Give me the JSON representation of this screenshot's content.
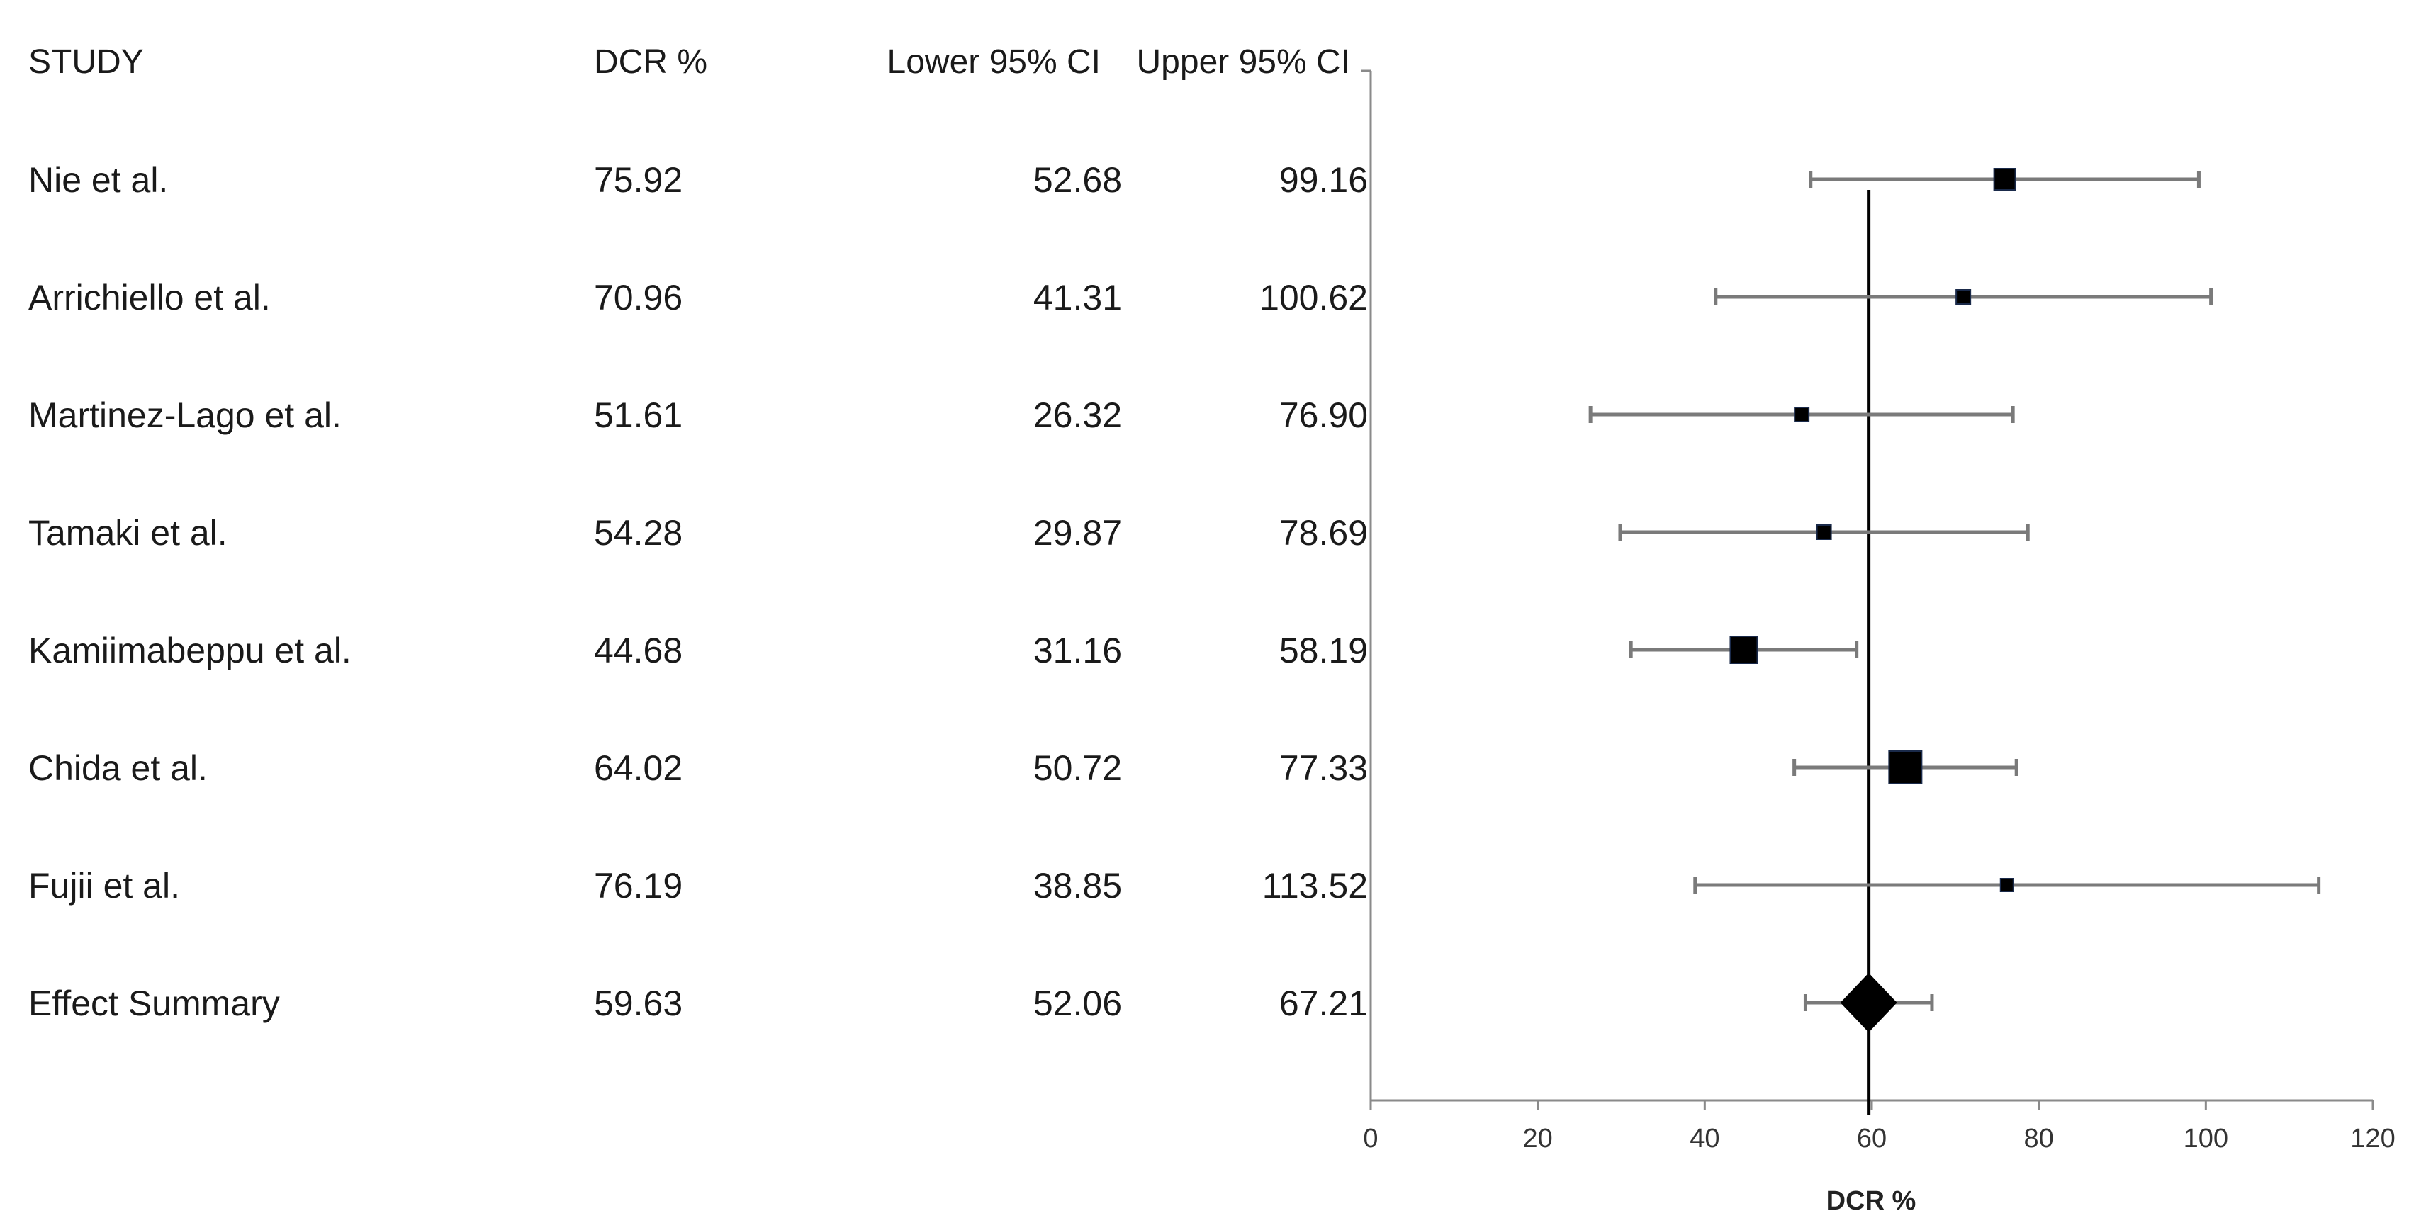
{
  "table": {
    "headers": {
      "study": "STUDY",
      "dcr": "DCR %",
      "lower": "Lower 95% CI",
      "upper": "Upper 95% CI"
    }
  },
  "chart_data": {
    "type": "forest",
    "xlabel": "DCR %",
    "xlim": [
      0,
      120
    ],
    "xticks": [
      "0",
      "20",
      "40",
      "60",
      "80",
      "100",
      "120"
    ],
    "reference_line": 59.63,
    "rows": [
      {
        "study": "Nie et al.",
        "dcr": 75.92,
        "lower": 52.68,
        "upper": 99.16,
        "dcr_text": "75.92",
        "lower_text": "52.68",
        "upper_text": "99.16",
        "weight": "medium",
        "summary": false
      },
      {
        "study": "Arrichiello et al.",
        "dcr": 70.96,
        "lower": 41.31,
        "upper": 100.62,
        "dcr_text": "70.96",
        "lower_text": "41.31",
        "upper_text": "100.62",
        "weight": "small",
        "summary": false
      },
      {
        "study": "Martinez-Lago et al.",
        "dcr": 51.61,
        "lower": 26.32,
        "upper": 76.9,
        "dcr_text": "51.61",
        "lower_text": "26.32",
        "upper_text": "76.90",
        "weight": "small",
        "summary": false
      },
      {
        "study": "Tamaki et al.",
        "dcr": 54.28,
        "lower": 29.87,
        "upper": 78.69,
        "dcr_text": "54.28",
        "lower_text": "29.87",
        "upper_text": "78.69",
        "weight": "small",
        "summary": false
      },
      {
        "study": "Kamiimabeppu et al.",
        "dcr": 44.68,
        "lower": 31.16,
        "upper": 58.19,
        "dcr_text": "44.68",
        "lower_text": "31.16",
        "upper_text": "58.19",
        "weight": "large",
        "summary": false
      },
      {
        "study": "Chida et al.",
        "dcr": 64.02,
        "lower": 50.72,
        "upper": 77.33,
        "dcr_text": "64.02",
        "lower_text": "50.72",
        "upper_text": "77.33",
        "weight": "xlarge",
        "summary": false
      },
      {
        "study": "Fujii et al.",
        "dcr": 76.19,
        "lower": 38.85,
        "upper": 113.52,
        "dcr_text": "76.19",
        "lower_text": "38.85",
        "upper_text": "113.52",
        "weight": "tiny",
        "summary": false
      },
      {
        "study": "Effect Summary",
        "dcr": 59.63,
        "lower": 52.06,
        "upper": 67.21,
        "dcr_text": "59.63",
        "lower_text": "52.06",
        "upper_text": "67.21",
        "weight": "summary",
        "summary": true
      }
    ]
  }
}
